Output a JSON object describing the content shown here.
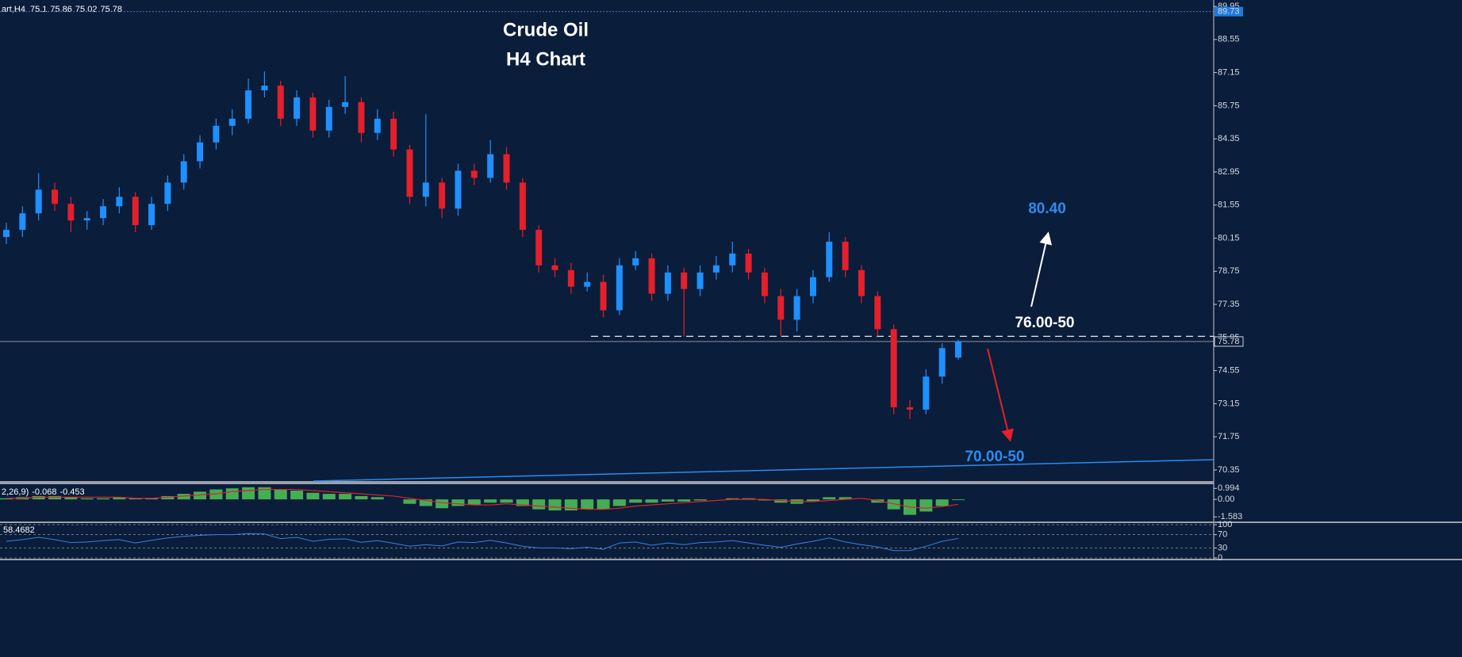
{
  "chart_data": [
    {
      "type": "candlestick",
      "title": "Crude Oil",
      "subtitle": "H4 Chart",
      "symbol_label": "art,H4",
      "up_color": "#1e90ff",
      "down_color": "#e3202b",
      "open": [
        80.2,
        80.5,
        81.2,
        82.2,
        81.6,
        80.9,
        81.0,
        81.5,
        81.9,
        80.7,
        81.6,
        82.5,
        83.4,
        84.2,
        84.9,
        85.2,
        86.4,
        86.6,
        85.2,
        86.1,
        84.7,
        85.7,
        85.9,
        84.6,
        85.2,
        83.9,
        81.9,
        82.5,
        81.4,
        83.0,
        82.7,
        83.7,
        82.5,
        80.5,
        79.0,
        78.8,
        78.1,
        78.3,
        77.1,
        79.0,
        79.3,
        77.8,
        78.7,
        78.0,
        78.7,
        79.0,
        79.5,
        78.7,
        77.7,
        76.7,
        77.7,
        78.5,
        80.0,
        78.8,
        77.7,
        76.3,
        73.0,
        72.9,
        74.3,
        75.1
      ],
      "high": [
        80.8,
        81.5,
        82.9,
        82.5,
        81.9,
        81.3,
        81.8,
        82.3,
        82.1,
        81.9,
        82.8,
        83.7,
        84.5,
        85.2,
        85.6,
        86.9,
        87.2,
        86.8,
        86.4,
        86.3,
        86.0,
        87.0,
        86.1,
        85.6,
        85.5,
        84.1,
        85.4,
        82.7,
        83.3,
        83.3,
        84.3,
        84.0,
        82.7,
        80.7,
        79.3,
        79.1,
        78.7,
        78.6,
        79.3,
        79.6,
        79.5,
        79.0,
        78.9,
        79.0,
        79.4,
        80.0,
        79.7,
        78.9,
        78.0,
        78.0,
        78.8,
        80.4,
        80.2,
        79.0,
        77.9,
        76.5,
        73.3,
        74.6,
        75.7,
        75.86
      ],
      "low": [
        79.9,
        80.2,
        80.9,
        81.3,
        80.4,
        80.5,
        80.7,
        81.2,
        80.4,
        80.5,
        81.3,
        82.2,
        83.1,
        83.9,
        84.5,
        85.0,
        86.1,
        84.9,
        84.9,
        84.4,
        84.4,
        85.4,
        84.2,
        84.3,
        83.6,
        81.6,
        81.5,
        81.0,
        81.1,
        82.4,
        82.5,
        82.2,
        80.2,
        78.7,
        78.5,
        77.8,
        77.9,
        76.8,
        76.9,
        78.8,
        77.5,
        77.5,
        76.0,
        77.7,
        78.4,
        78.7,
        78.4,
        77.4,
        76.0,
        76.2,
        77.4,
        78.3,
        78.5,
        77.4,
        76.0,
        72.7,
        72.5,
        72.7,
        74.0,
        75.02
      ],
      "close": [
        80.5,
        81.2,
        82.2,
        81.6,
        80.9,
        81.0,
        81.5,
        81.9,
        80.7,
        81.6,
        82.5,
        83.4,
        84.2,
        84.9,
        85.2,
        86.4,
        86.6,
        85.2,
        86.1,
        84.7,
        85.7,
        85.9,
        84.6,
        85.2,
        83.9,
        81.9,
        82.5,
        81.4,
        83.0,
        82.7,
        83.7,
        82.5,
        80.5,
        79.0,
        78.8,
        78.1,
        78.3,
        77.1,
        79.0,
        79.3,
        77.8,
        78.7,
        78.0,
        78.7,
        79.0,
        79.5,
        78.7,
        77.7,
        76.7,
        77.7,
        78.5,
        80.0,
        78.8,
        77.7,
        76.3,
        73.0,
        72.9,
        74.3,
        75.5,
        75.78
      ],
      "ylim": [
        69.88,
        90.22
      ],
      "yticks": [
        89.95,
        88.55,
        87.15,
        85.75,
        84.35,
        82.95,
        81.55,
        80.15,
        78.75,
        77.35,
        75.95,
        74.55,
        73.15,
        71.75,
        70.35
      ],
      "top_marker": 89.73,
      "annotations": [
        {
          "text": "80.40"
        },
        {
          "text": "76.00-50",
          "value": 76.0
        },
        {
          "text": "70.00-50"
        }
      ]
    },
    {
      "type": "macd",
      "indicator_label": "2,26,9)",
      "series": [
        {
          "color": "#4fc85a",
          "values": [
            0.1,
            0.2,
            0.3,
            0.3,
            0.2,
            0.1,
            0.1,
            0.2,
            0.1,
            0.1,
            0.3,
            0.5,
            0.7,
            0.9,
            1.0,
            1.1,
            1.1,
            0.9,
            0.8,
            0.6,
            0.5,
            0.5,
            0.3,
            0.2,
            0.0,
            -0.4,
            -0.6,
            -0.8,
            -0.6,
            -0.5,
            -0.3,
            -0.3,
            -0.6,
            -0.9,
            -1.0,
            -1.0,
            -0.9,
            -0.9,
            -0.6,
            -0.3,
            -0.3,
            -0.2,
            -0.2,
            -0.1,
            0.0,
            0.1,
            0.1,
            -0.1,
            -0.3,
            -0.4,
            -0.2,
            0.2,
            0.2,
            0.0,
            -0.3,
            -0.9,
            -1.4,
            -1.1,
            -0.6,
            -0.068
          ]
        },
        {
          "color": "#e3202b",
          "values": [
            0.1,
            0.1,
            0.2,
            0.2,
            0.2,
            0.2,
            0.2,
            0.2,
            0.1,
            0.1,
            0.2,
            0.3,
            0.4,
            0.5,
            0.7,
            0.8,
            0.9,
            0.9,
            0.9,
            0.8,
            0.7,
            0.6,
            0.5,
            0.4,
            0.3,
            0.1,
            -0.1,
            -0.3,
            -0.4,
            -0.5,
            -0.5,
            -0.4,
            -0.5,
            -0.6,
            -0.7,
            -0.8,
            -0.9,
            -0.9,
            -0.8,
            -0.6,
            -0.5,
            -0.4,
            -0.3,
            -0.2,
            -0.1,
            0.0,
            0.0,
            0.0,
            -0.1,
            -0.2,
            -0.2,
            -0.1,
            0.0,
            0.1,
            -0.1,
            -0.4,
            -0.7,
            -0.8,
            -0.65,
            -0.453
          ]
        }
      ],
      "ylim": [
        -2.0,
        1.3
      ],
      "yticks": [
        0.994,
        {
          "value": 0,
          "label": "0.00"
        },
        -1.583
      ]
    },
    {
      "type": "line",
      "series": [
        {
          "color": "#3d7fe0",
          "values": [
            50,
            55,
            62,
            55,
            46,
            48,
            52,
            55,
            45,
            53,
            60,
            65,
            68,
            70,
            70,
            73,
            72,
            58,
            62,
            50,
            56,
            57,
            47,
            52,
            44,
            35,
            40,
            36,
            48,
            46,
            53,
            45,
            35,
            30,
            30,
            28,
            32,
            26,
            45,
            48,
            38,
            45,
            40,
            46,
            48,
            52,
            45,
            38,
            32,
            42,
            50,
            60,
            48,
            40,
            33,
            22,
            22,
            35,
            50,
            58.4682
          ]
        }
      ],
      "ylim": [
        0,
        100
      ],
      "yticks": [
        100,
        70,
        30,
        0
      ]
    }
  ]
}
